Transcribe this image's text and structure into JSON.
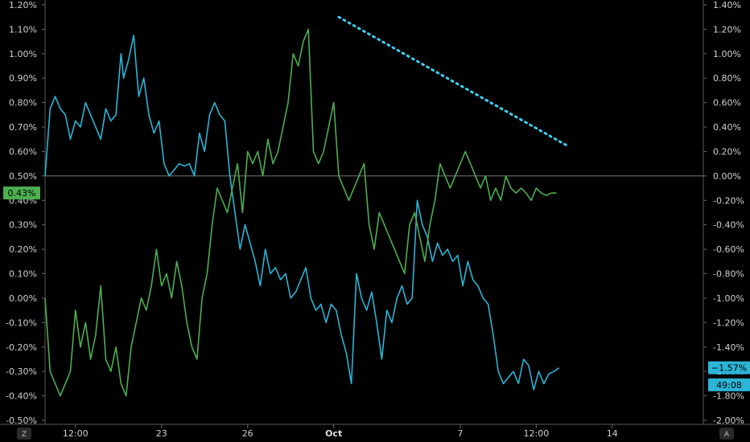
{
  "chart_data": {
    "type": "line",
    "left_axis": {
      "ylim": [
        -0.5,
        1.2
      ],
      "ticks": [
        "1.20%",
        "1.10%",
        "1.00%",
        "0.90%",
        "0.80%",
        "0.70%",
        "0.60%",
        "0.50%",
        "0.40%",
        "0.30%",
        "0.20%",
        "0.10%",
        "0.00%",
        "-0.10%",
        "-0.20%",
        "-0.30%",
        "-0.40%",
        "-0.50%"
      ]
    },
    "right_axis": {
      "ylim": [
        -2.0,
        1.4
      ],
      "ticks": [
        "1.40%",
        "1.20%",
        "1.00%",
        "0.80%",
        "0.60%",
        "0.40%",
        "0.20%",
        "0.00%",
        "-0.20%",
        "-0.40%",
        "-0.60%",
        "-0.80%",
        "-1.00%",
        "-1.20%",
        "-1.40%",
        "-1.60%",
        "-1.80%",
        "-2.00%"
      ]
    },
    "x_axis": {
      "range": [
        0,
        26
      ],
      "ticks": [
        {
          "x": 1.2,
          "label": "12:00",
          "bold": false
        },
        {
          "x": 4.6,
          "label": "23",
          "bold": false
        },
        {
          "x": 8.0,
          "label": "26",
          "bold": false
        },
        {
          "x": 11.4,
          "label": "Oct",
          "bold": true
        },
        {
          "x": 16.4,
          "label": "7",
          "bold": false
        },
        {
          "x": 19.4,
          "label": "12:00",
          "bold": false
        },
        {
          "x": 22.4,
          "label": "14",
          "bold": false
        }
      ]
    },
    "series": [
      {
        "axis": "right",
        "color": "#2bb5d6",
        "x": [
          0,
          0.2,
          0.4,
          0.6,
          0.8,
          1.0,
          1.2,
          1.4,
          1.6,
          1.8,
          2.0,
          2.2,
          2.4,
          2.6,
          2.8,
          3.0,
          3.1,
          3.3,
          3.5,
          3.7,
          3.9,
          4.1,
          4.3,
          4.5,
          4.7,
          4.9,
          5.1,
          5.3,
          5.5,
          5.7,
          5.9,
          6.1,
          6.3,
          6.5,
          6.7,
          6.9,
          7.1,
          7.3,
          7.5,
          7.7,
          7.9,
          8.1,
          8.3,
          8.5,
          8.7,
          8.9,
          9.1,
          9.3,
          9.5,
          9.7,
          9.9,
          10.1,
          10.3,
          10.5,
          10.7,
          10.9,
          11.1,
          11.3,
          11.5,
          11.7,
          11.9,
          12.1,
          12.3,
          12.5,
          12.7,
          12.9,
          13.1,
          13.3,
          13.5,
          13.7,
          13.9,
          14.1,
          14.3,
          14.5,
          14.7,
          14.9,
          15.1,
          15.3,
          15.5,
          15.7,
          15.9,
          16.1,
          16.3,
          16.5,
          16.7,
          16.9,
          17.1,
          17.3,
          17.5,
          17.7,
          17.9,
          18.1,
          18.3,
          18.5,
          18.7,
          18.9,
          19.1,
          19.3,
          19.5,
          19.7,
          19.9,
          20.1,
          20.3
        ],
        "y": [
          0.0,
          0.55,
          0.65,
          0.55,
          0.5,
          0.3,
          0.45,
          0.4,
          0.6,
          0.5,
          0.4,
          0.3,
          0.55,
          0.45,
          0.5,
          1.0,
          0.8,
          0.95,
          1.15,
          0.65,
          0.8,
          0.5,
          0.35,
          0.45,
          0.1,
          0.0,
          0.05,
          0.1,
          0.08,
          0.1,
          0.0,
          0.35,
          0.2,
          0.5,
          0.6,
          0.5,
          0.45,
          0.0,
          -0.3,
          -0.6,
          -0.4,
          -0.55,
          -0.7,
          -0.9,
          -0.6,
          -0.8,
          -0.75,
          -0.85,
          -0.8,
          -1.0,
          -0.95,
          -0.85,
          -0.75,
          -1.0,
          -1.1,
          -1.05,
          -1.2,
          -1.05,
          -1.1,
          -1.3,
          -1.45,
          -1.7,
          -0.8,
          -1.0,
          -1.1,
          -0.95,
          -1.2,
          -1.5,
          -1.1,
          -1.2,
          -1.0,
          -0.9,
          -1.05,
          -1.0,
          -0.2,
          -0.4,
          -0.5,
          -0.7,
          -0.55,
          -0.65,
          -0.6,
          -0.7,
          -0.65,
          -0.9,
          -0.7,
          -0.85,
          -0.9,
          -1.0,
          -1.05,
          -1.3,
          -1.6,
          -1.7,
          -1.65,
          -1.6,
          -1.7,
          -1.5,
          -1.55,
          -1.75,
          -1.6,
          -1.7,
          -1.62,
          -1.6,
          -1.57
        ]
      },
      {
        "axis": "left",
        "color": "#4caf50",
        "x": [
          0,
          0.2,
          0.4,
          0.6,
          0.8,
          1.0,
          1.2,
          1.4,
          1.6,
          1.8,
          2.0,
          2.2,
          2.4,
          2.6,
          2.8,
          3.0,
          3.2,
          3.4,
          3.6,
          3.8,
          4.0,
          4.2,
          4.4,
          4.6,
          4.8,
          5.0,
          5.2,
          5.4,
          5.6,
          5.8,
          6.0,
          6.2,
          6.4,
          6.6,
          6.8,
          7.0,
          7.2,
          7.4,
          7.6,
          7.8,
          8.0,
          8.2,
          8.4,
          8.6,
          8.8,
          9.0,
          9.2,
          9.4,
          9.6,
          9.8,
          10.0,
          10.2,
          10.4,
          10.6,
          10.8,
          11.0,
          11.2,
          11.4,
          11.6,
          11.8,
          12.0,
          12.2,
          12.4,
          12.6,
          12.8,
          13.0,
          13.2,
          13.4,
          13.6,
          13.8,
          14.0,
          14.2,
          14.4,
          14.6,
          14.8,
          15.0,
          15.2,
          15.4,
          15.6,
          15.8,
          16.0,
          16.2,
          16.4,
          16.6,
          16.8,
          17.0,
          17.2,
          17.4,
          17.6,
          17.8,
          18.0,
          18.2,
          18.4,
          18.6,
          18.8,
          19.0,
          19.2,
          19.4,
          19.6,
          19.8,
          20.0,
          20.2
        ],
        "y": [
          0.0,
          -0.3,
          -0.35,
          -0.4,
          -0.35,
          -0.3,
          -0.05,
          -0.2,
          -0.1,
          -0.25,
          -0.15,
          0.05,
          -0.25,
          -0.3,
          -0.2,
          -0.35,
          -0.4,
          -0.2,
          -0.1,
          0.0,
          -0.05,
          0.05,
          0.2,
          0.05,
          0.1,
          0.0,
          0.15,
          0.05,
          -0.1,
          -0.2,
          -0.25,
          0.0,
          0.1,
          0.3,
          0.45,
          0.4,
          0.35,
          0.45,
          0.55,
          0.35,
          0.6,
          0.55,
          0.6,
          0.5,
          0.65,
          0.55,
          0.6,
          0.7,
          0.8,
          1.0,
          0.95,
          1.05,
          1.1,
          0.6,
          0.55,
          0.6,
          0.7,
          0.8,
          0.5,
          0.45,
          0.4,
          0.45,
          0.5,
          0.55,
          0.3,
          0.2,
          0.35,
          0.3,
          0.25,
          0.2,
          0.15,
          0.1,
          0.3,
          0.35,
          0.25,
          0.15,
          0.3,
          0.4,
          0.55,
          0.5,
          0.45,
          0.5,
          0.55,
          0.6,
          0.55,
          0.5,
          0.45,
          0.5,
          0.4,
          0.45,
          0.4,
          0.5,
          0.45,
          0.43,
          0.45,
          0.43,
          0.4,
          0.45,
          0.43,
          0.42,
          0.43,
          0.43
        ]
      }
    ],
    "trendline": {
      "axis": "right",
      "color": "#3fd0f0",
      "x": [
        11.6,
        20.6
      ],
      "y": [
        1.3,
        0.25
      ]
    },
    "reference_line_y_right": 0.0,
    "badges": [
      {
        "axis": "left",
        "value": 0.43,
        "label": "0.43%",
        "color": "#4caf50"
      },
      {
        "axis": "right",
        "value": -1.57,
        "label": "−1.57%",
        "color": "#2bb5d6"
      },
      {
        "axis": "right",
        "value": -1.71,
        "label": "49:08",
        "color": "#2bb5d6"
      }
    ],
    "corner_buttons": {
      "left": "Z",
      "right": "A"
    },
    "grid": false
  }
}
